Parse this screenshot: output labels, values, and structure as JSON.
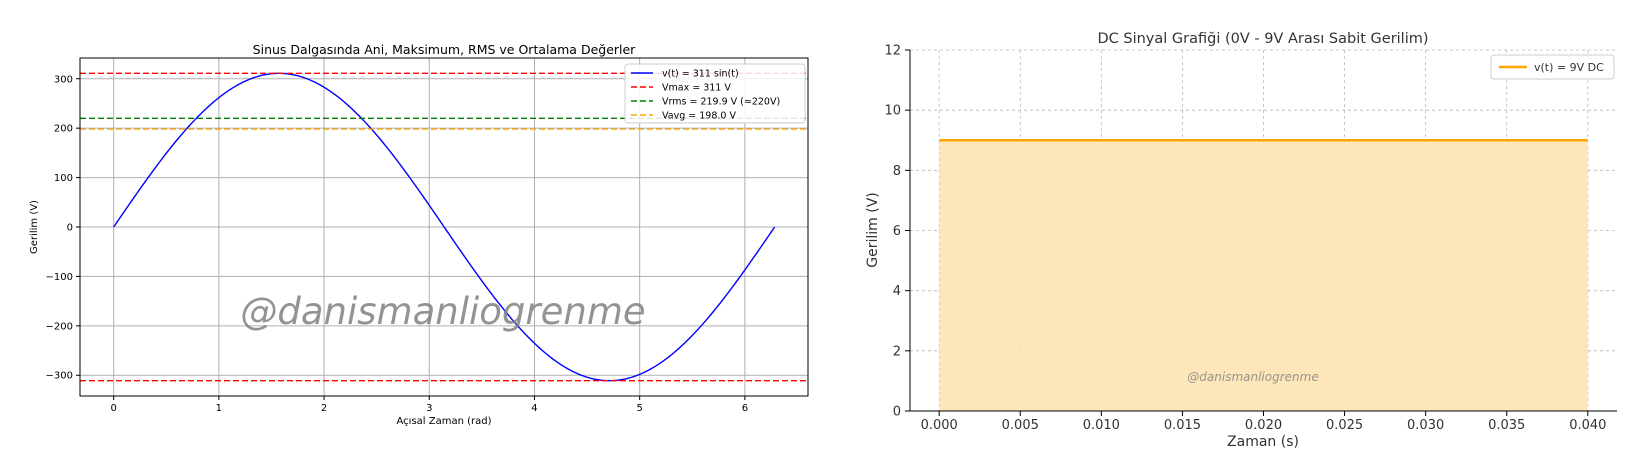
{
  "chart_data": [
    {
      "type": "line",
      "title": "Sinus Dalgasında Ani, Maksimum, RMS ve Ortalama Değerler",
      "xlabel": "Açısal Zaman (rad)",
      "ylabel": "Gerilim (V)",
      "xlim": [
        -0.32,
        6.6
      ],
      "ylim": [
        -342,
        342
      ],
      "xticks": [
        0,
        1,
        2,
        3,
        4,
        5,
        6
      ],
      "yticks": [
        -300,
        -200,
        -100,
        0,
        100,
        200,
        300
      ],
      "xtick_labels": [
        "0",
        "1",
        "2",
        "3",
        "4",
        "5",
        "6"
      ],
      "ytick_labels": [
        "−300",
        "−200",
        "−100",
        "0",
        "100",
        "200",
        "300"
      ],
      "grid": true,
      "legend_position": "top-right",
      "series": [
        {
          "name": "v(t) = 311 sin(t)",
          "kind": "sine",
          "amplitude": 311,
          "x_range": [
            0,
            6.2832
          ],
          "color": "#0000ff",
          "style": "solid"
        },
        {
          "name": "Vmax = 311 V",
          "kind": "hline",
          "y": 311,
          "color": "#ff0000",
          "style": "dashed"
        },
        {
          "name": "",
          "kind": "hline",
          "y": -311,
          "color": "#ff0000",
          "style": "dashed"
        },
        {
          "name": "Vrms = 219.9 V (≈220V)",
          "kind": "hline",
          "y": 219.9,
          "color": "#008000",
          "style": "dashed"
        },
        {
          "name": "Vavg = 198.0 V",
          "kind": "hline",
          "y": 198.0,
          "color": "#ffa500",
          "style": "dashed"
        }
      ],
      "watermark": "@danismanliogrenme"
    },
    {
      "type": "area",
      "title": "DC Sinyal Grafiği (0V - 9V Arası Sabit Gerilim)",
      "xlabel": "Zaman (s)",
      "ylabel": "Gerilim (V)",
      "xlim": [
        -0.0018,
        0.0418
      ],
      "ylim": [
        0,
        12
      ],
      "xticks": [
        0.0,
        0.005,
        0.01,
        0.015,
        0.02,
        0.025,
        0.03,
        0.035,
        0.04
      ],
      "yticks": [
        0,
        2,
        4,
        6,
        8,
        10,
        12
      ],
      "xtick_labels": [
        "0.000",
        "0.005",
        "0.010",
        "0.015",
        "0.020",
        "0.025",
        "0.030",
        "0.035",
        "0.040"
      ],
      "ytick_labels": [
        "0",
        "2",
        "4",
        "6",
        "8",
        "10",
        "12"
      ],
      "grid": true,
      "legend_position": "top-right",
      "series": [
        {
          "name": "v(t) = 9V DC",
          "x": [
            0.0,
            0.04
          ],
          "y": [
            9,
            9
          ],
          "color": "#ffa500",
          "fill": "#fde3b3"
        }
      ],
      "watermark": "@danismanliogrenme"
    }
  ]
}
